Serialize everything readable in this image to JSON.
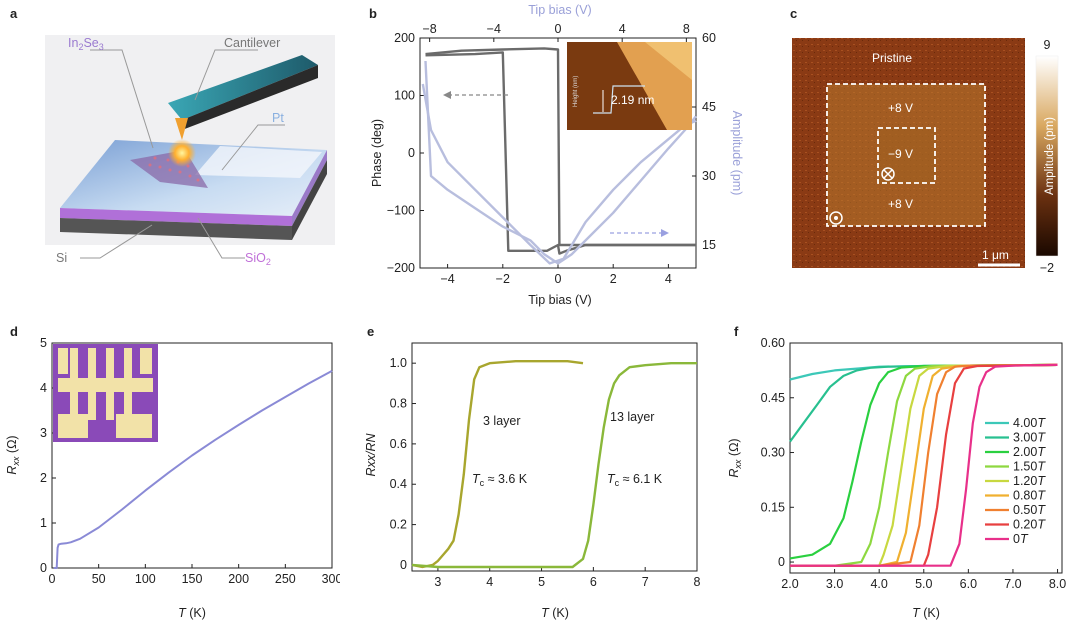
{
  "panels": {
    "a": {
      "label": "a",
      "callouts": {
        "material": [
          "In",
          "2",
          "Se",
          "3"
        ],
        "cantilever": "Cantilever",
        "electrode": "Pt",
        "substrate": "Si",
        "oxide": [
          "SiO",
          "2"
        ]
      }
    },
    "b": {
      "label": "b",
      "xlabel": "Tip bias (V)",
      "top_xlabel": "Tip bias (V)",
      "ylabel": "Phase (deg)",
      "y2label": "Amplitude (pm)",
      "xticks": [
        "−4",
        "−2",
        "0",
        "2",
        "4"
      ],
      "top_xticks": [
        "−8",
        "−4",
        "0",
        "4",
        "8"
      ],
      "yticks": [
        "200",
        "100",
        "0",
        "−100",
        "−200"
      ],
      "y2ticks": [
        "60",
        "45",
        "30",
        "15"
      ],
      "inset": {
        "step": "2.19 nm",
        "yaxis": "Height (nm)"
      }
    },
    "c": {
      "label": "c",
      "labels": {
        "pristine": "Pristine",
        "outer_top": "+8 V",
        "inner": "−9 V",
        "outer_bottom": "+8 V"
      },
      "scalebar": "1 μm",
      "colorbar": {
        "max": "9",
        "min": "−2",
        "label": "Amplitude (pm)"
      }
    },
    "d": {
      "label": "d",
      "xlabel_italic": "T",
      "xlabel_unit": " (K)",
      "ylabel_main": "R",
      "ylabel_sub": "xx",
      "ylabel_unit": " (Ω)",
      "xticks": [
        "0",
        "50",
        "100",
        "150",
        "200",
        "250",
        "300"
      ],
      "yticks": [
        "5",
        "4",
        "3",
        "2",
        "1",
        "0"
      ]
    },
    "e": {
      "label": "e",
      "xlabel_italic": "T",
      "xlabel_unit": " (K)",
      "ylabel": "Rxx/RN",
      "xticks": [
        "3",
        "4",
        "5",
        "6",
        "7",
        "8"
      ],
      "yticks": [
        "1.0",
        "0.8",
        "0.6",
        "0.4",
        "0.2",
        "0"
      ],
      "annot_3": "3 layer",
      "annot_13": "13 layer",
      "tc_3": "≈ 3.6 K",
      "tc_13": "≈ 6.1 K"
    },
    "f": {
      "label": "f",
      "xlabel_italic": "T",
      "xlabel_unit": " (K)",
      "ylabel_main": "R",
      "ylabel_sub": "xx",
      "ylabel_unit": " (Ω)",
      "xticks": [
        "2.0",
        "3.0",
        "4.0",
        "5.0",
        "6.0",
        "7.0",
        "8.0"
      ],
      "yticks": [
        "0.60",
        "0.45",
        "0.30",
        "0.15",
        "0"
      ],
      "legend": [
        "4.00",
        "3.00",
        "2.00",
        "1.50",
        "1.20",
        "0.80",
        "0.50",
        "0.20",
        "0"
      ],
      "legend_unit": "T"
    }
  },
  "chart_data": [
    {
      "panel": "b",
      "type": "line",
      "title": "",
      "xlabel": "Tip bias (V)",
      "ylabel": "Phase (deg)",
      "y2label": "Amplitude (pm)",
      "xlim": [
        -5,
        5
      ],
      "ylim": [
        -200,
        200
      ],
      "y2lim": [
        10,
        60
      ],
      "series": [
        {
          "name": "Phase",
          "color": "#6b6b6b",
          "x": [
            -4.8,
            -3,
            -2,
            -1.8,
            -1.6,
            -1.2,
            -0.8,
            -0.4,
            0,
            0.05,
            0.3,
            1,
            2,
            3,
            4,
            5
          ],
          "y": [
            170,
            172,
            175,
            -170,
            -170,
            -170,
            -170,
            -170,
            -160,
            -175,
            -170,
            -160,
            -160,
            -160,
            -160,
            -160
          ]
        },
        {
          "name": "Phase (back)",
          "color": "#6b6b6b",
          "x": [
            5,
            3,
            1,
            0.3,
            0.05,
            0,
            -0.5,
            -2,
            -3.5,
            -4.8
          ],
          "y": [
            -160,
            -160,
            -160,
            -160,
            -160,
            180,
            182,
            180,
            178,
            172
          ]
        },
        {
          "name": "Amplitude",
          "color": "#b8bede",
          "x": [
            -4.8,
            -4.6,
            -4,
            -3,
            -2,
            -1,
            -0.5,
            0,
            0.5,
            1,
            2,
            3,
            4,
            4.6,
            5
          ],
          "y": [
            55,
            30,
            27,
            23,
            19,
            16,
            13,
            11,
            13,
            16,
            22,
            29,
            36,
            40,
            43
          ]
        },
        {
          "name": "Amplitude (back)",
          "color": "#b8bede",
          "x": [
            -4.9,
            -4.6,
            -4,
            -3,
            -2,
            -1,
            -0.3,
            0.2,
            1,
            2,
            3,
            4,
            4.6,
            5
          ],
          "y": [
            50,
            40,
            33,
            27,
            21,
            15,
            11,
            12,
            20,
            27,
            33,
            38,
            41,
            42
          ]
        }
      ]
    },
    {
      "panel": "d",
      "type": "line",
      "xlabel": "T (K)",
      "ylabel": "Rxx (Ω)",
      "xlim": [
        0,
        300
      ],
      "ylim": [
        0,
        5
      ],
      "series": [
        {
          "name": "Rxx",
          "color": "#8a8ad6",
          "x": [
            2,
            5,
            6,
            7,
            8,
            10,
            15,
            20,
            30,
            50,
            75,
            100,
            125,
            150,
            175,
            200,
            225,
            250,
            275,
            300
          ],
          "y": [
            0.0,
            0.0,
            0.45,
            0.52,
            0.53,
            0.54,
            0.55,
            0.57,
            0.65,
            0.9,
            1.3,
            1.72,
            2.12,
            2.5,
            2.85,
            3.18,
            3.5,
            3.8,
            4.1,
            4.38
          ]
        }
      ]
    },
    {
      "panel": "e",
      "type": "line",
      "xlabel": "T (K)",
      "ylabel": "Rxx/RN",
      "xlim": [
        2.5,
        8
      ],
      "ylim": [
        -0.03,
        1.1
      ],
      "series": [
        {
          "name": "3 layer",
          "color": "#a8a62e",
          "x": [
            2.5,
            2.7,
            2.9,
            3.0,
            3.1,
            3.2,
            3.3,
            3.4,
            3.5,
            3.6,
            3.7,
            3.8,
            3.9,
            4.0,
            4.5,
            5.0,
            5.5,
            5.8
          ],
          "y": [
            0.0,
            -0.01,
            0.0,
            0.02,
            0.05,
            0.08,
            0.12,
            0.25,
            0.45,
            0.72,
            0.92,
            0.98,
            0.99,
            1.0,
            1.01,
            1.01,
            1.01,
            1.0
          ]
        },
        {
          "name": "13 layer",
          "color": "#8ab83a",
          "x": [
            2.5,
            3,
            4,
            5,
            5.6,
            5.8,
            5.9,
            6.0,
            6.1,
            6.2,
            6.3,
            6.4,
            6.5,
            6.7,
            7.0,
            7.5,
            8.0
          ],
          "y": [
            0.0,
            -0.01,
            -0.01,
            -0.01,
            -0.01,
            0.03,
            0.12,
            0.3,
            0.5,
            0.68,
            0.82,
            0.9,
            0.94,
            0.98,
            0.99,
            1.0,
            1.0
          ]
        }
      ]
    },
    {
      "panel": "f",
      "type": "line",
      "xlabel": "T (K)",
      "ylabel": "Rxx (Ω)",
      "xlim": [
        2,
        8.1
      ],
      "ylim": [
        -0.03,
        0.6
      ],
      "series": [
        {
          "name": "4.00T",
          "color": "#3cc8b8",
          "x": [
            2,
            2.5,
            3,
            3.5,
            4,
            5,
            6,
            7,
            8
          ],
          "y": [
            0.5,
            0.515,
            0.525,
            0.53,
            0.535,
            0.537,
            0.538,
            0.539,
            0.54
          ]
        },
        {
          "name": "3.00T",
          "color": "#28c090",
          "x": [
            2,
            2.3,
            2.6,
            2.9,
            3.2,
            3.5,
            3.8,
            4.2,
            5,
            6,
            8
          ],
          "y": [
            0.33,
            0.38,
            0.43,
            0.48,
            0.51,
            0.525,
            0.532,
            0.535,
            0.537,
            0.538,
            0.54
          ]
        },
        {
          "name": "2.00T",
          "color": "#2ad040",
          "x": [
            2,
            2.5,
            2.9,
            3.2,
            3.4,
            3.6,
            3.8,
            4.0,
            4.2,
            4.5,
            5,
            6,
            8
          ],
          "y": [
            0.01,
            0.02,
            0.05,
            0.12,
            0.22,
            0.33,
            0.43,
            0.49,
            0.52,
            0.533,
            0.537,
            0.538,
            0.54
          ]
        },
        {
          "name": "1.50T",
          "color": "#8ed840",
          "x": [
            2,
            3,
            3.6,
            3.8,
            4.0,
            4.2,
            4.4,
            4.6,
            4.8,
            5.2,
            6,
            8
          ],
          "y": [
            -0.01,
            -0.01,
            0.0,
            0.05,
            0.15,
            0.3,
            0.44,
            0.51,
            0.53,
            0.537,
            0.538,
            0.54
          ]
        },
        {
          "name": "1.20T",
          "color": "#c8d840",
          "x": [
            2,
            3,
            4,
            4.1,
            4.3,
            4.5,
            4.7,
            4.9,
            5.1,
            5.5,
            6,
            8
          ],
          "y": [
            -0.01,
            -0.01,
            -0.01,
            0.02,
            0.1,
            0.26,
            0.42,
            0.51,
            0.53,
            0.537,
            0.538,
            0.54
          ]
        },
        {
          "name": "0.80T",
          "color": "#f0b030",
          "x": [
            2,
            3,
            4,
            4.4,
            4.6,
            4.8,
            5.0,
            5.2,
            5.4,
            5.8,
            8
          ],
          "y": [
            -0.01,
            -0.01,
            -0.01,
            0.0,
            0.08,
            0.25,
            0.42,
            0.51,
            0.53,
            0.537,
            0.54
          ]
        },
        {
          "name": "0.50T",
          "color": "#f08030",
          "x": [
            2,
            3,
            4,
            4.7,
            4.9,
            5.1,
            5.3,
            5.5,
            5.7,
            6,
            8
          ],
          "y": [
            -0.01,
            -0.01,
            -0.01,
            0.0,
            0.1,
            0.3,
            0.46,
            0.52,
            0.535,
            0.538,
            0.54
          ]
        },
        {
          "name": "0.20T",
          "color": "#e84040",
          "x": [
            2,
            3,
            4,
            5,
            5.1,
            5.3,
            5.5,
            5.7,
            5.9,
            6.2,
            8
          ],
          "y": [
            -0.01,
            -0.01,
            -0.01,
            -0.01,
            0.02,
            0.15,
            0.35,
            0.49,
            0.53,
            0.537,
            0.54
          ]
        },
        {
          "name": "0T",
          "color": "#e8308a",
          "x": [
            2,
            3,
            4,
            5,
            5.6,
            5.8,
            5.95,
            6.1,
            6.25,
            6.4,
            6.6,
            7,
            8
          ],
          "y": [
            -0.01,
            -0.01,
            -0.01,
            -0.01,
            -0.01,
            0.05,
            0.2,
            0.38,
            0.48,
            0.52,
            0.535,
            0.538,
            0.54
          ]
        }
      ]
    }
  ]
}
